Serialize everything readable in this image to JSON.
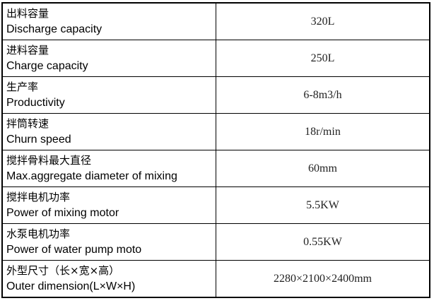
{
  "rows": [
    {
      "cn": "出料容量",
      "en": "Discharge capacity",
      "value": "320L"
    },
    {
      "cn": "进料容量",
      "en": "Charge capacity",
      "value": "250L"
    },
    {
      "cn": "生产率",
      "en": "Productivity",
      "value": "6-8m3/h"
    },
    {
      "cn": "拌筒转速",
      "en": "Churn speed",
      "value": "18r/min"
    },
    {
      "cn": "搅拌骨料最大直径",
      "en": "Max.aggregate diameter of mixing",
      "value": "60mm"
    },
    {
      "cn": "搅拌电机功率",
      "en": "Power of mixing motor",
      "value": "5.5KW"
    },
    {
      "cn": "水泵电机功率",
      "en": "Power of water pump moto",
      "value": "0.55KW"
    },
    {
      "cn": "外型尺寸（长×宽×高）",
      "en": "Outer dimension(L×W×H)",
      "value": "2280×2100×2400mm"
    }
  ]
}
